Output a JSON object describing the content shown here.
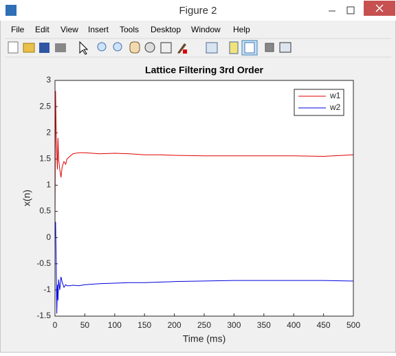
{
  "window": {
    "title": "Figure 2",
    "menu": [
      "File",
      "Edit",
      "View",
      "Insert",
      "Tools",
      "Desktop",
      "Window",
      "Help"
    ]
  },
  "chart_data": {
    "type": "line",
    "title": "Lattice Filtering 3rd Order",
    "x_label": "Time (ms)",
    "y_label": "x(n)",
    "x": [
      0,
      1,
      2,
      3,
      4,
      5,
      6,
      8,
      10,
      12,
      15,
      18,
      20,
      25,
      30,
      40,
      50,
      75,
      100,
      125,
      150,
      175,
      200,
      250,
      300,
      350,
      400,
      450,
      500
    ],
    "series": [
      {
        "name": "w1",
        "color": "#e00000",
        "values": [
          0.2,
          2.8,
          2.0,
          1.6,
          1.3,
          1.9,
          1.5,
          1.3,
          1.15,
          1.35,
          1.45,
          1.4,
          1.5,
          1.55,
          1.6,
          1.62,
          1.62,
          1.6,
          1.61,
          1.6,
          1.58,
          1.58,
          1.57,
          1.56,
          1.56,
          1.56,
          1.56,
          1.55,
          1.58
        ]
      },
      {
        "name": "w2",
        "color": "#0000e0",
        "values": [
          0,
          0.3,
          -0.5,
          -1.45,
          -0.9,
          -1.2,
          -0.8,
          -1.0,
          -0.75,
          -0.85,
          -0.95,
          -0.9,
          -0.92,
          -0.92,
          -0.91,
          -0.92,
          -0.9,
          -0.88,
          -0.87,
          -0.86,
          -0.86,
          -0.85,
          -0.84,
          -0.83,
          -0.82,
          -0.82,
          -0.82,
          -0.82,
          -0.83
        ]
      }
    ],
    "xlim": [
      0,
      500
    ],
    "xticks": [
      0,
      50,
      100,
      150,
      200,
      250,
      300,
      350,
      400,
      450,
      500
    ],
    "ylim": [
      -1.5,
      3
    ],
    "yticks": [
      -1.5,
      -1,
      -0.5,
      0,
      0.5,
      1,
      1.5,
      2,
      2.5,
      3
    ],
    "grid": false,
    "legend": "northeast"
  }
}
